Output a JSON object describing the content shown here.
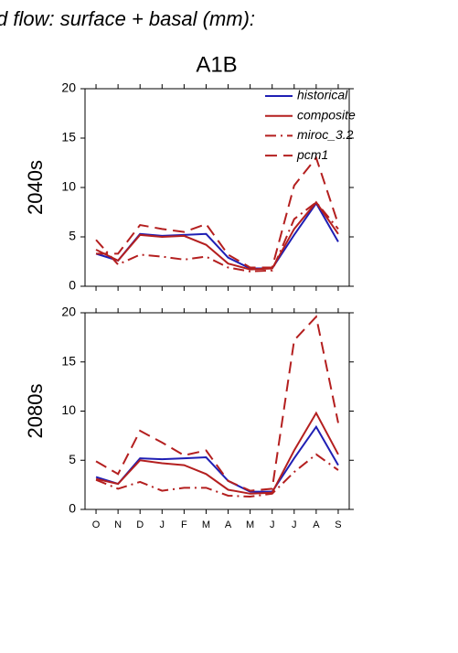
{
  "chart_data": [
    {
      "type": "line",
      "title": "d flow: surface + basal (mm):",
      "subtitle": "A1B",
      "ylabel": "2040s",
      "categories": [
        null,
        null,
        null,
        null,
        null,
        null,
        null,
        null,
        null,
        null,
        null,
        null
      ],
      "ylim": [
        0,
        20
      ],
      "yticks": [
        0,
        5,
        10,
        15,
        20
      ],
      "legend": "top-right",
      "series": [
        {
          "name": "historical",
          "color": "#1f1fb4",
          "linestyle": "solid",
          "values": [
            3.3,
            2.6,
            5.3,
            5.1,
            5.2,
            5.3,
            2.9,
            1.8,
            1.8,
            5.2,
            8.4,
            4.5
          ]
        },
        {
          "name": "composite",
          "color": "#b41f1f",
          "linestyle": "solid",
          "values": [
            3.7,
            2.6,
            5.2,
            5.0,
            5.1,
            4.2,
            2.3,
            1.7,
            1.8,
            5.8,
            8.5,
            5.3
          ]
        },
        {
          "name": "miroc_3.2",
          "color": "#b41f1f",
          "linestyle": "dashdot",
          "values": [
            4.7,
            2.2,
            3.2,
            3.0,
            2.7,
            3.0,
            1.9,
            1.5,
            1.6,
            6.8,
            8.5,
            5.8
          ]
        },
        {
          "name": "pcm1",
          "color": "#b41f1f",
          "linestyle": "dashed",
          "values": [
            3.3,
            3.3,
            6.2,
            5.8,
            5.5,
            6.3,
            3.2,
            1.9,
            1.9,
            10.2,
            13.0,
            6.3
          ]
        }
      ]
    },
    {
      "type": "line",
      "ylabel": "2080s",
      "categories": [
        "O",
        "N",
        "D",
        "J",
        "F",
        "M",
        "A",
        "M",
        "J",
        "J",
        "A",
        "S"
      ],
      "ylim": [
        0,
        20
      ],
      "yticks": [
        0,
        5,
        10,
        15,
        20
      ],
      "series": [
        {
          "color": "#1f1fb4",
          "linestyle": "solid",
          "values": [
            3.3,
            2.6,
            5.2,
            5.1,
            5.2,
            5.3,
            2.9,
            1.8,
            1.8,
            5.2,
            8.4,
            4.5
          ]
        },
        {
          "color": "#b41f1f",
          "linestyle": "solid",
          "values": [
            3.1,
            2.6,
            5.0,
            4.7,
            4.5,
            3.6,
            2.0,
            1.6,
            1.7,
            6.0,
            9.8,
            5.6
          ]
        },
        {
          "color": "#b41f1f",
          "linestyle": "dashdot",
          "values": [
            3.0,
            2.1,
            2.8,
            1.9,
            2.2,
            2.2,
            1.4,
            1.3,
            1.6,
            3.8,
            5.6,
            4.0
          ]
        },
        {
          "color": "#b41f1f",
          "linestyle": "dashed",
          "values": [
            4.9,
            3.6,
            8.0,
            6.8,
            5.5,
            6.0,
            2.9,
            1.9,
            2.1,
            17.2,
            19.6,
            8.8
          ]
        }
      ]
    }
  ]
}
